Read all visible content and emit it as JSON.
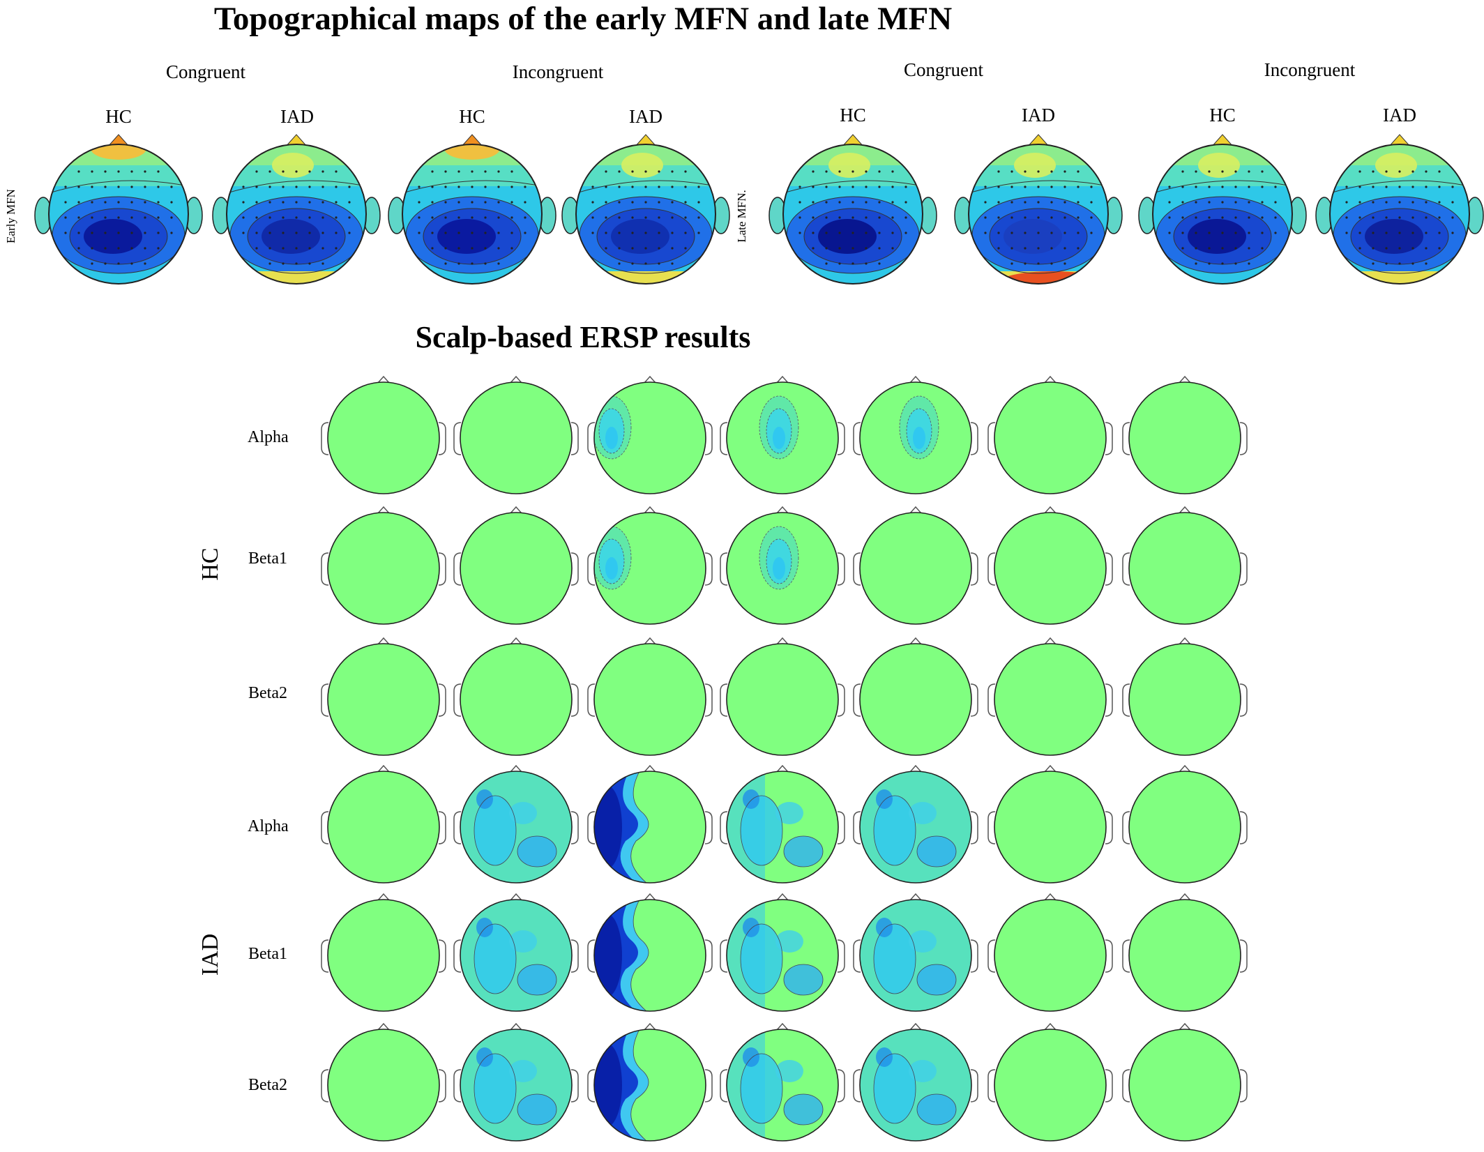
{
  "topo": {
    "title": "Topographical maps of the early MFN and late MFN",
    "conditions": [
      "Congruent",
      "Incongruent",
      "Congruent",
      "Incongruent"
    ],
    "groups": [
      "HC",
      "IAD",
      "HC",
      "IAD",
      "HC",
      "IAD",
      "HC",
      "IAD"
    ],
    "row_labels": [
      "Early MFN",
      "Late MFN."
    ]
  },
  "ersp": {
    "title": "Scalp-based ERSP results",
    "groups": [
      "HC",
      "IAD"
    ],
    "bands": [
      "Alpha",
      "Beta1",
      "Beta2",
      "Alpha",
      "Beta1",
      "Beta2"
    ]
  },
  "colors": {
    "ersp_background": "#80FF80",
    "head_outline": "#333333",
    "colormap": "jet"
  }
}
